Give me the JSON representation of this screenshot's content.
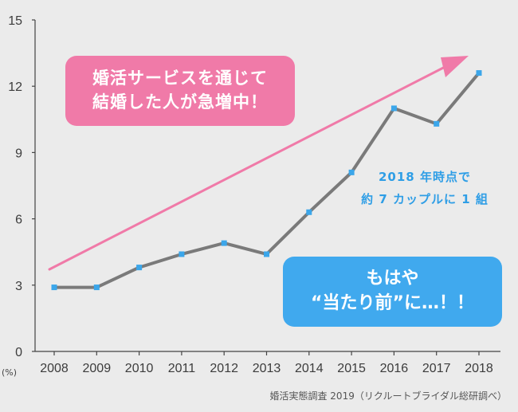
{
  "chart_data": {
    "type": "line",
    "x": [
      "2008",
      "2009",
      "2010",
      "2011",
      "2012",
      "2013",
      "2014",
      "2015",
      "2016",
      "2017",
      "2018"
    ],
    "values": [
      2.9,
      2.9,
      3.8,
      4.4,
      4.9,
      4.4,
      6.3,
      8.1,
      11.0,
      10.3,
      12.6
    ],
    "ylim": [
      0,
      15
    ],
    "yticks": [
      0,
      3,
      6,
      9,
      12,
      15
    ],
    "yunit": "(%)",
    "grid": false,
    "colors": {
      "line": "#7a7a7a",
      "marker": "#3ba6ea",
      "trend_arrow": "#f07aa8"
    }
  },
  "callouts": {
    "headline": [
      "婚活サービスを通じて",
      "結婚した人が急増中！"
    ],
    "annotation": [
      "2018 年時点で",
      "約 7 カップルに 1 組"
    ],
    "conclusion": [
      "もはや",
      "“当たり前”に…！！"
    ]
  },
  "source": "婚活実態調査 2019（リクルートブライダル総研調べ）"
}
